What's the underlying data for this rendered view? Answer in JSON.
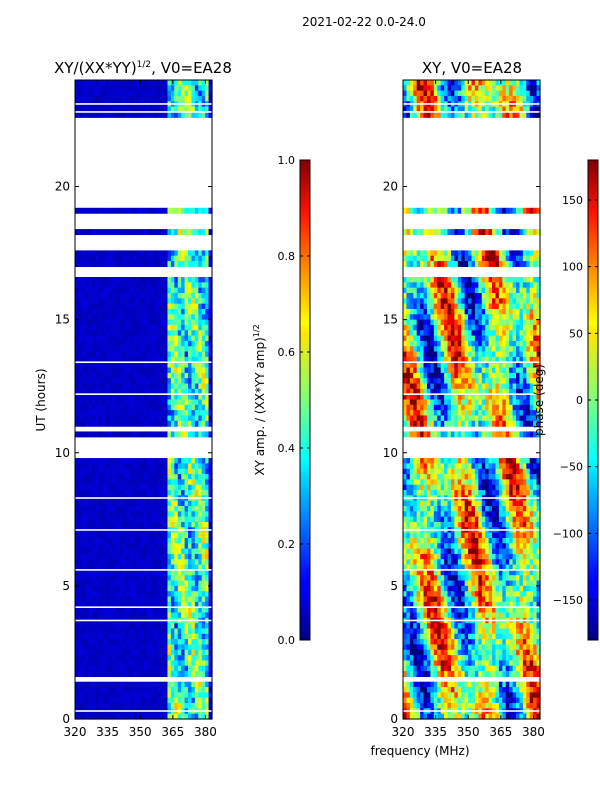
{
  "figure_title": "2021-02-22 0.0-24.0",
  "xlabel": "frequency (MHz)",
  "chart_data": [
    {
      "type": "heatmap",
      "title_main": "XY/(XX*YY)",
      "title_sup": "1/2",
      "title_tail": ", V0=EA28",
      "ylabel": "UT (hours)",
      "xlim": [
        320,
        383
      ],
      "ylim": [
        0,
        24
      ],
      "xticks": [
        320,
        335,
        350,
        365,
        380
      ],
      "yticks": [
        0,
        5,
        10,
        15,
        20
      ],
      "colormap": "jet",
      "colorbar": {
        "label_main": "XY amp. / (XX*YY amp)",
        "label_sup": "1/2",
        "range": [
          0.0,
          1.0
        ],
        "ticks": [
          "0.0",
          "0.2",
          "0.4",
          "0.6",
          "0.8",
          "1.0"
        ]
      },
      "blank_time_ranges_hours": [
        [
          22.5,
          20.9
        ],
        [
          20.8,
          19.2
        ],
        [
          18.9,
          18.4
        ],
        [
          18.2,
          17.7
        ],
        [
          17.0,
          16.7
        ],
        [
          11.0,
          10.9
        ],
        [
          10.6,
          9.9
        ],
        [
          2.1,
          1.9
        ],
        [
          1.6,
          1.4
        ]
      ],
      "description": "Mostly low amplitude (~0.05) below 360 MHz; elevated amplitude (0.3–0.7) between ~362 and ~382 MHz"
    },
    {
      "type": "heatmap",
      "title_main": "XY, V0=EA28",
      "title_sup": "",
      "title_tail": "",
      "ylabel": "",
      "xlim": [
        320,
        383
      ],
      "ylim": [
        0,
        24
      ],
      "xticks": [
        320,
        335,
        350,
        365,
        380
      ],
      "yticks": [
        0,
        5,
        10,
        15,
        20
      ],
      "colormap": "jet",
      "colorbar": {
        "label_main": "phase (deg)",
        "label_sup": "",
        "range": [
          -180,
          180
        ],
        "ticks": [
          "150",
          "100",
          "50",
          "0",
          "−50",
          "−100",
          "−150"
        ]
      },
      "blank_time_ranges_hours": [
        [
          22.5,
          20.9
        ],
        [
          20.8,
          19.2
        ],
        [
          18.9,
          18.4
        ],
        [
          18.2,
          17.7
        ],
        [
          17.0,
          16.7
        ],
        [
          11.0,
          10.9
        ],
        [
          10.6,
          9.9
        ],
        [
          2.1,
          1.9
        ],
        [
          1.6,
          1.4
        ]
      ],
      "description": "Phase varies strongly with frequency and time across the full band"
    }
  ]
}
